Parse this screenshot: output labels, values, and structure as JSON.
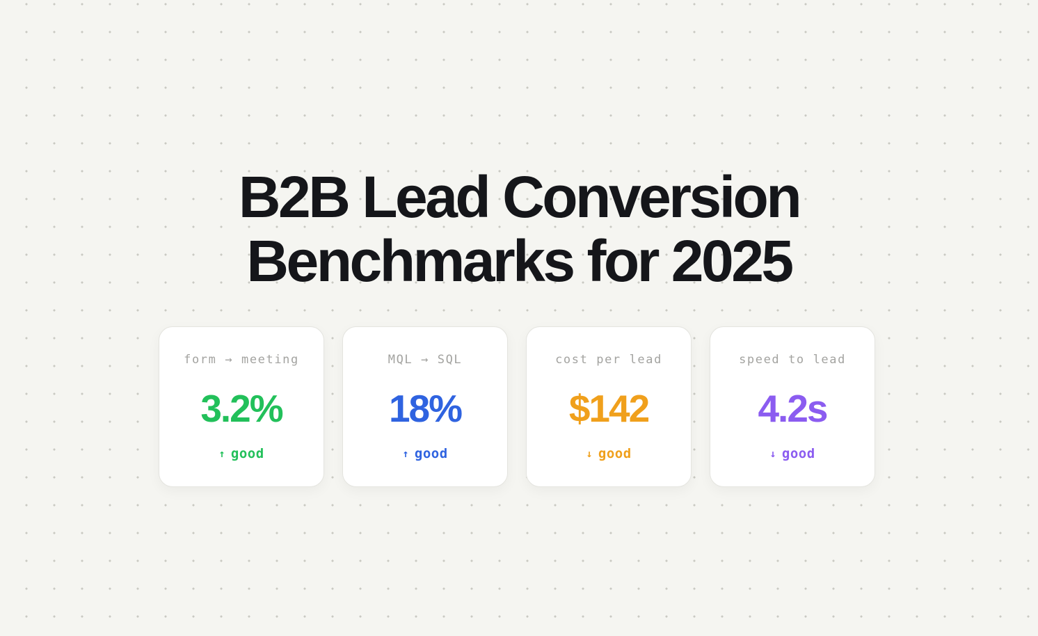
{
  "title": {
    "line1": "B2B Lead Conversion",
    "line2": "Benchmarks for 2025"
  },
  "cards": [
    {
      "label": "form → meeting",
      "value": "3.2%",
      "arrow": "↑",
      "trend": "good",
      "color": "#22c05a"
    },
    {
      "label": "MQL → SQL",
      "value": "18%",
      "arrow": "↑",
      "trend": "good",
      "color": "#2f63e0"
    },
    {
      "label": "cost per lead",
      "value": "$142",
      "arrow": "↓",
      "trend": "good",
      "color": "#f0a01c"
    },
    {
      "label": "speed to lead",
      "value": "4.2s",
      "arrow": "↓",
      "trend": "good",
      "color": "#8b5cf0"
    }
  ]
}
